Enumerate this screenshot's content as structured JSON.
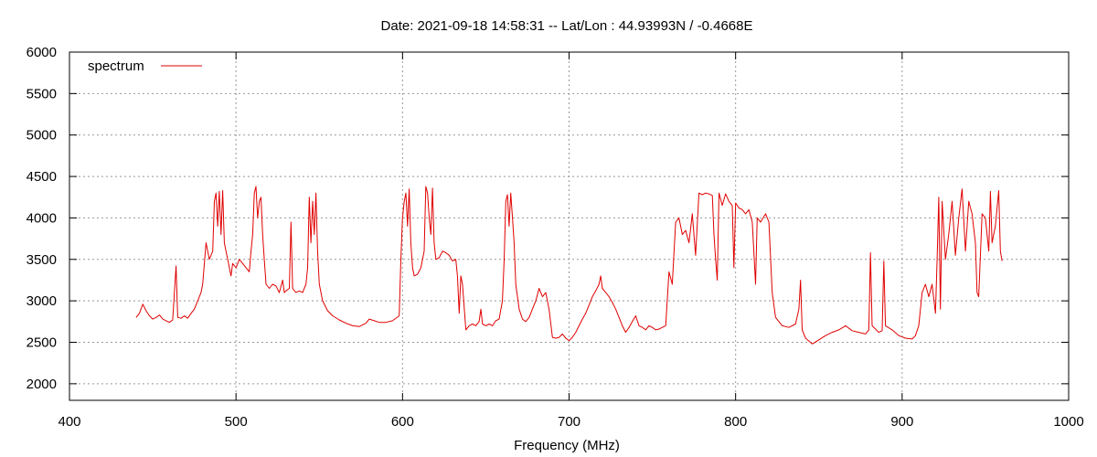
{
  "chart_data": {
    "type": "line",
    "title": "Date: 2021-09-18 14:58:31  --  Lat/Lon : 44.93993N / -0.4668E",
    "xlabel": "Frequency (MHz)",
    "ylabel": "",
    "xlim": [
      400,
      1000
    ],
    "ylim": [
      1800,
      6000
    ],
    "xticks": [
      400,
      500,
      600,
      700,
      800,
      900,
      1000
    ],
    "yticks": [
      2000,
      2500,
      3000,
      3500,
      4000,
      4500,
      5000,
      5500,
      6000
    ],
    "grid": true,
    "legend": {
      "position": "top-left"
    },
    "series": [
      {
        "name": "spectrum",
        "color": "#e00000",
        "points": [
          [
            440,
            2800
          ],
          [
            442,
            2850
          ],
          [
            444,
            2960
          ],
          [
            446,
            2880
          ],
          [
            448,
            2820
          ],
          [
            450,
            2780
          ],
          [
            452,
            2800
          ],
          [
            454,
            2830
          ],
          [
            456,
            2780
          ],
          [
            458,
            2760
          ],
          [
            460,
            2740
          ],
          [
            462,
            2770
          ],
          [
            464,
            3420
          ],
          [
            465,
            2800
          ],
          [
            467,
            2790
          ],
          [
            469,
            2820
          ],
          [
            471,
            2790
          ],
          [
            473,
            2850
          ],
          [
            475,
            2900
          ],
          [
            477,
            3000
          ],
          [
            479,
            3100
          ],
          [
            480,
            3200
          ],
          [
            482,
            3700
          ],
          [
            484,
            3500
          ],
          [
            486,
            3600
          ],
          [
            487,
            4200
          ],
          [
            488,
            4300
          ],
          [
            489,
            3900
          ],
          [
            490,
            4320
          ],
          [
            491,
            3800
          ],
          [
            492,
            4330
          ],
          [
            493,
            3700
          ],
          [
            494,
            3600
          ],
          [
            495,
            3500
          ],
          [
            496,
            3400
          ],
          [
            497,
            3300
          ],
          [
            498,
            3450
          ],
          [
            500,
            3400
          ],
          [
            502,
            3500
          ],
          [
            504,
            3450
          ],
          [
            506,
            3400
          ],
          [
            508,
            3350
          ],
          [
            509,
            3600
          ],
          [
            510,
            3800
          ],
          [
            511,
            4300
          ],
          [
            512,
            4380
          ],
          [
            513,
            4000
          ],
          [
            514,
            4200
          ],
          [
            515,
            4250
          ],
          [
            516,
            3800
          ],
          [
            517,
            3500
          ],
          [
            518,
            3200
          ],
          [
            520,
            3150
          ],
          [
            522,
            3200
          ],
          [
            524,
            3180
          ],
          [
            526,
            3100
          ],
          [
            528,
            3250
          ],
          [
            529,
            3100
          ],
          [
            530,
            3120
          ],
          [
            532,
            3150
          ],
          [
            533,
            3950
          ],
          [
            534,
            3150
          ],
          [
            536,
            3100
          ],
          [
            538,
            3120
          ],
          [
            540,
            3100
          ],
          [
            542,
            3200
          ],
          [
            543,
            3400
          ],
          [
            544,
            4250
          ],
          [
            545,
            3700
          ],
          [
            546,
            4200
          ],
          [
            547,
            3800
          ],
          [
            548,
            4300
          ],
          [
            549,
            3600
          ],
          [
            550,
            3200
          ],
          [
            552,
            3000
          ],
          [
            555,
            2880
          ],
          [
            558,
            2820
          ],
          [
            562,
            2770
          ],
          [
            566,
            2730
          ],
          [
            570,
            2700
          ],
          [
            574,
            2690
          ],
          [
            578,
            2730
          ],
          [
            580,
            2780
          ],
          [
            583,
            2760
          ],
          [
            586,
            2740
          ],
          [
            590,
            2740
          ],
          [
            594,
            2760
          ],
          [
            598,
            2820
          ],
          [
            599,
            3500
          ],
          [
            600,
            4000
          ],
          [
            601,
            4200
          ],
          [
            602,
            4300
          ],
          [
            603,
            3900
          ],
          [
            604,
            4350
          ],
          [
            605,
            3700
          ],
          [
            606,
            3400
          ],
          [
            607,
            3300
          ],
          [
            609,
            3320
          ],
          [
            611,
            3400
          ],
          [
            613,
            3600
          ],
          [
            614,
            4380
          ],
          [
            615,
            4300
          ],
          [
            616,
            4000
          ],
          [
            617,
            3800
          ],
          [
            618,
            4360
          ],
          [
            619,
            3700
          ],
          [
            620,
            3500
          ],
          [
            622,
            3520
          ],
          [
            624,
            3600
          ],
          [
            626,
            3580
          ],
          [
            628,
            3550
          ],
          [
            630,
            3480
          ],
          [
            632,
            3500
          ],
          [
            633,
            3300
          ],
          [
            634,
            2850
          ],
          [
            635,
            3300
          ],
          [
            636,
            3200
          ],
          [
            638,
            2650
          ],
          [
            640,
            2700
          ],
          [
            642,
            2720
          ],
          [
            644,
            2700
          ],
          [
            646,
            2750
          ],
          [
            647,
            2900
          ],
          [
            648,
            2720
          ],
          [
            650,
            2700
          ],
          [
            652,
            2720
          ],
          [
            654,
            2700
          ],
          [
            656,
            2760
          ],
          [
            658,
            2780
          ],
          [
            660,
            3000
          ],
          [
            661,
            3500
          ],
          [
            662,
            4200
          ],
          [
            663,
            4280
          ],
          [
            664,
            3900
          ],
          [
            665,
            4300
          ],
          [
            666,
            4000
          ],
          [
            667,
            3700
          ],
          [
            668,
            3200
          ],
          [
            670,
            2900
          ],
          [
            672,
            2780
          ],
          [
            674,
            2750
          ],
          [
            676,
            2800
          ],
          [
            678,
            2900
          ],
          [
            680,
            3000
          ],
          [
            682,
            3150
          ],
          [
            684,
            3050
          ],
          [
            686,
            3100
          ],
          [
            688,
            2900
          ],
          [
            690,
            2560
          ],
          [
            692,
            2550
          ],
          [
            694,
            2560
          ],
          [
            696,
            2600
          ],
          [
            698,
            2550
          ],
          [
            700,
            2520
          ],
          [
            702,
            2560
          ],
          [
            704,
            2620
          ],
          [
            706,
            2700
          ],
          [
            708,
            2780
          ],
          [
            710,
            2850
          ],
          [
            712,
            2950
          ],
          [
            714,
            3050
          ],
          [
            716,
            3120
          ],
          [
            718,
            3200
          ],
          [
            719,
            3300
          ],
          [
            720,
            3150
          ],
          [
            722,
            3100
          ],
          [
            724,
            3050
          ],
          [
            726,
            2980
          ],
          [
            728,
            2900
          ],
          [
            730,
            2800
          ],
          [
            732,
            2700
          ],
          [
            734,
            2620
          ],
          [
            736,
            2680
          ],
          [
            738,
            2750
          ],
          [
            740,
            2820
          ],
          [
            742,
            2700
          ],
          [
            744,
            2680
          ],
          [
            746,
            2650
          ],
          [
            748,
            2700
          ],
          [
            750,
            2680
          ],
          [
            752,
            2650
          ],
          [
            754,
            2660
          ],
          [
            756,
            2680
          ],
          [
            758,
            2700
          ],
          [
            760,
            3350
          ],
          [
            762,
            3200
          ],
          [
            764,
            3950
          ],
          [
            766,
            4000
          ],
          [
            768,
            3800
          ],
          [
            770,
            3850
          ],
          [
            772,
            3700
          ],
          [
            774,
            4050
          ],
          [
            776,
            3550
          ],
          [
            778,
            4300
          ],
          [
            780,
            4280
          ],
          [
            782,
            4300
          ],
          [
            784,
            4290
          ],
          [
            786,
            4270
          ],
          [
            787,
            3800
          ],
          [
            788,
            3500
          ],
          [
            789,
            3250
          ],
          [
            790,
            4300
          ],
          [
            792,
            4150
          ],
          [
            794,
            4290
          ],
          [
            796,
            4200
          ],
          [
            798,
            4150
          ],
          [
            799,
            3400
          ],
          [
            800,
            4180
          ],
          [
            802,
            4120
          ],
          [
            804,
            4100
          ],
          [
            806,
            4050
          ],
          [
            808,
            4100
          ],
          [
            810,
            3950
          ],
          [
            812,
            3200
          ],
          [
            813,
            4000
          ],
          [
            815,
            3950
          ],
          [
            818,
            4050
          ],
          [
            820,
            3950
          ],
          [
            822,
            3100
          ],
          [
            824,
            2800
          ],
          [
            828,
            2700
          ],
          [
            832,
            2680
          ],
          [
            836,
            2720
          ],
          [
            838,
            2900
          ],
          [
            839,
            3250
          ],
          [
            840,
            2650
          ],
          [
            842,
            2550
          ],
          [
            846,
            2480
          ],
          [
            850,
            2530
          ],
          [
            854,
            2580
          ],
          [
            858,
            2620
          ],
          [
            862,
            2650
          ],
          [
            866,
            2700
          ],
          [
            870,
            2640
          ],
          [
            874,
            2620
          ],
          [
            878,
            2600
          ],
          [
            880,
            2650
          ],
          [
            881,
            3580
          ],
          [
            882,
            2700
          ],
          [
            884,
            2660
          ],
          [
            886,
            2620
          ],
          [
            888,
            2640
          ],
          [
            889,
            3480
          ],
          [
            890,
            2700
          ],
          [
            894,
            2650
          ],
          [
            898,
            2580
          ],
          [
            902,
            2550
          ],
          [
            906,
            2540
          ],
          [
            908,
            2580
          ],
          [
            910,
            2700
          ],
          [
            912,
            3100
          ],
          [
            914,
            3200
          ],
          [
            916,
            3050
          ],
          [
            918,
            3200
          ],
          [
            920,
            2850
          ],
          [
            921,
            3500
          ],
          [
            922,
            4250
          ],
          [
            923,
            2900
          ],
          [
            924,
            4200
          ],
          [
            926,
            3500
          ],
          [
            928,
            3800
          ],
          [
            930,
            4200
          ],
          [
            932,
            3550
          ],
          [
            934,
            4000
          ],
          [
            936,
            4350
          ],
          [
            938,
            3600
          ],
          [
            940,
            4200
          ],
          [
            942,
            4050
          ],
          [
            944,
            3700
          ],
          [
            945,
            3100
          ],
          [
            946,
            3050
          ],
          [
            948,
            4050
          ],
          [
            950,
            4000
          ],
          [
            952,
            3600
          ],
          [
            953,
            4320
          ],
          [
            954,
            3700
          ],
          [
            956,
            3900
          ],
          [
            958,
            4330
          ],
          [
            959,
            3600
          ],
          [
            960,
            3480
          ]
        ]
      }
    ]
  }
}
